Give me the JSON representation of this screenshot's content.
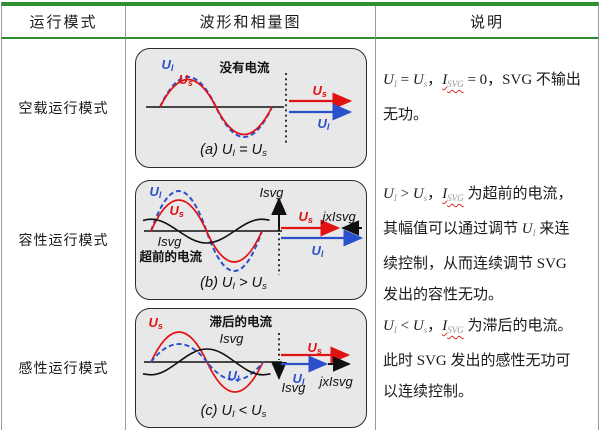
{
  "colors": {
    "table_accent_green": "#2f8f2f",
    "curve_red": "#e01212",
    "curve_blue": "#2b50cc",
    "diagram_fill": "#e8e8e8",
    "spellcheck_squiggle": "#d03030"
  },
  "header": {
    "mode": "运行模式",
    "waveform": "波形和相量图",
    "description": "说明"
  },
  "rows": [
    {
      "mode": "空载运行模式",
      "labels": {
        "ul": [
          [
            "U"
          ],
          [
            "I",
            "sub"
          ]
        ],
        "us": [
          [
            "U"
          ],
          [
            "s",
            "sub"
          ]
        ],
        "note": "没有电流",
        "ph_us": [
          [
            "U"
          ],
          [
            "s",
            "sub"
          ]
        ],
        "ph_ul": [
          [
            "U"
          ],
          [
            "I",
            "sub"
          ]
        ]
      },
      "caption": [
        [
          "(a)  "
        ],
        [
          "U"
        ],
        [
          "I",
          "sub"
        ],
        [
          " = "
        ],
        [
          "U"
        ],
        [
          "s",
          "sub"
        ]
      ],
      "explanation": [
        [
          "U",
          "i"
        ],
        [
          "I",
          "subg"
        ],
        [
          " = "
        ],
        [
          "U",
          "i"
        ],
        [
          "s",
          "subg"
        ],
        [
          "，"
        ],
        [
          "I",
          "i sq"
        ],
        [
          "SVG",
          "subg sq"
        ],
        [
          " = 0，SVG 不输出无功。"
        ]
      ]
    },
    {
      "mode": "容性运行模式",
      "labels": {
        "ul": [
          [
            "U"
          ],
          [
            "I",
            "sub"
          ]
        ],
        "us": [
          [
            "U"
          ],
          [
            "s",
            "sub"
          ]
        ],
        "isvg": "Isvg",
        "note": "超前的电流",
        "ph_isvg": "Isvg",
        "ph_us": [
          [
            "U"
          ],
          [
            "s",
            "sub"
          ]
        ],
        "ph_jx": "jxIsvg",
        "ph_ul": [
          [
            "U"
          ],
          [
            "I",
            "sub"
          ]
        ]
      },
      "caption": [
        [
          "(b)  "
        ],
        [
          "U"
        ],
        [
          "I",
          "sub"
        ],
        [
          " > "
        ],
        [
          "U"
        ],
        [
          "s",
          "sub"
        ]
      ],
      "explanation": [
        [
          "U",
          "i"
        ],
        [
          "I",
          "subg"
        ],
        [
          " > "
        ],
        [
          "U",
          "i"
        ],
        [
          "s",
          "subg"
        ],
        [
          "，"
        ],
        [
          "I",
          "i sq"
        ],
        [
          "SVG",
          "subg sq"
        ],
        [
          " 为超前的电流，其幅值可以通过调节 "
        ],
        [
          "U",
          "i"
        ],
        [
          "I",
          "subg"
        ],
        [
          " 来连续控制，从而连续调节 SVG 发出的容性无功。"
        ]
      ]
    },
    {
      "mode": "感性运行模式",
      "labels": {
        "us": [
          [
            "U"
          ],
          [
            "s",
            "sub"
          ]
        ],
        "note": "滞后的电流",
        "isvg": "Isvg",
        "ul": [
          [
            "U"
          ],
          [
            "I",
            "sub"
          ]
        ],
        "ph_isvg": "Isvg",
        "ph_us": [
          [
            "U"
          ],
          [
            "s",
            "sub"
          ]
        ],
        "ph_ul": [
          [
            "U"
          ],
          [
            "I",
            "sub"
          ]
        ],
        "ph_jx": "jxIsvg"
      },
      "caption": [
        [
          "(c)  "
        ],
        [
          "U"
        ],
        [
          "I",
          "sub"
        ],
        [
          " < "
        ],
        [
          "U"
        ],
        [
          "s",
          "sub"
        ]
      ],
      "explanation": [
        [
          "U",
          "i"
        ],
        [
          "I",
          "subg"
        ],
        [
          " < "
        ],
        [
          "U",
          "i"
        ],
        [
          "s",
          "subg"
        ],
        [
          "，"
        ],
        [
          "I",
          "i sq"
        ],
        [
          "SVG",
          "subg sq"
        ],
        [
          " 为滞后的电流。此时 SVG 发出的感性无功可以连续控制。"
        ]
      ]
    }
  ]
}
